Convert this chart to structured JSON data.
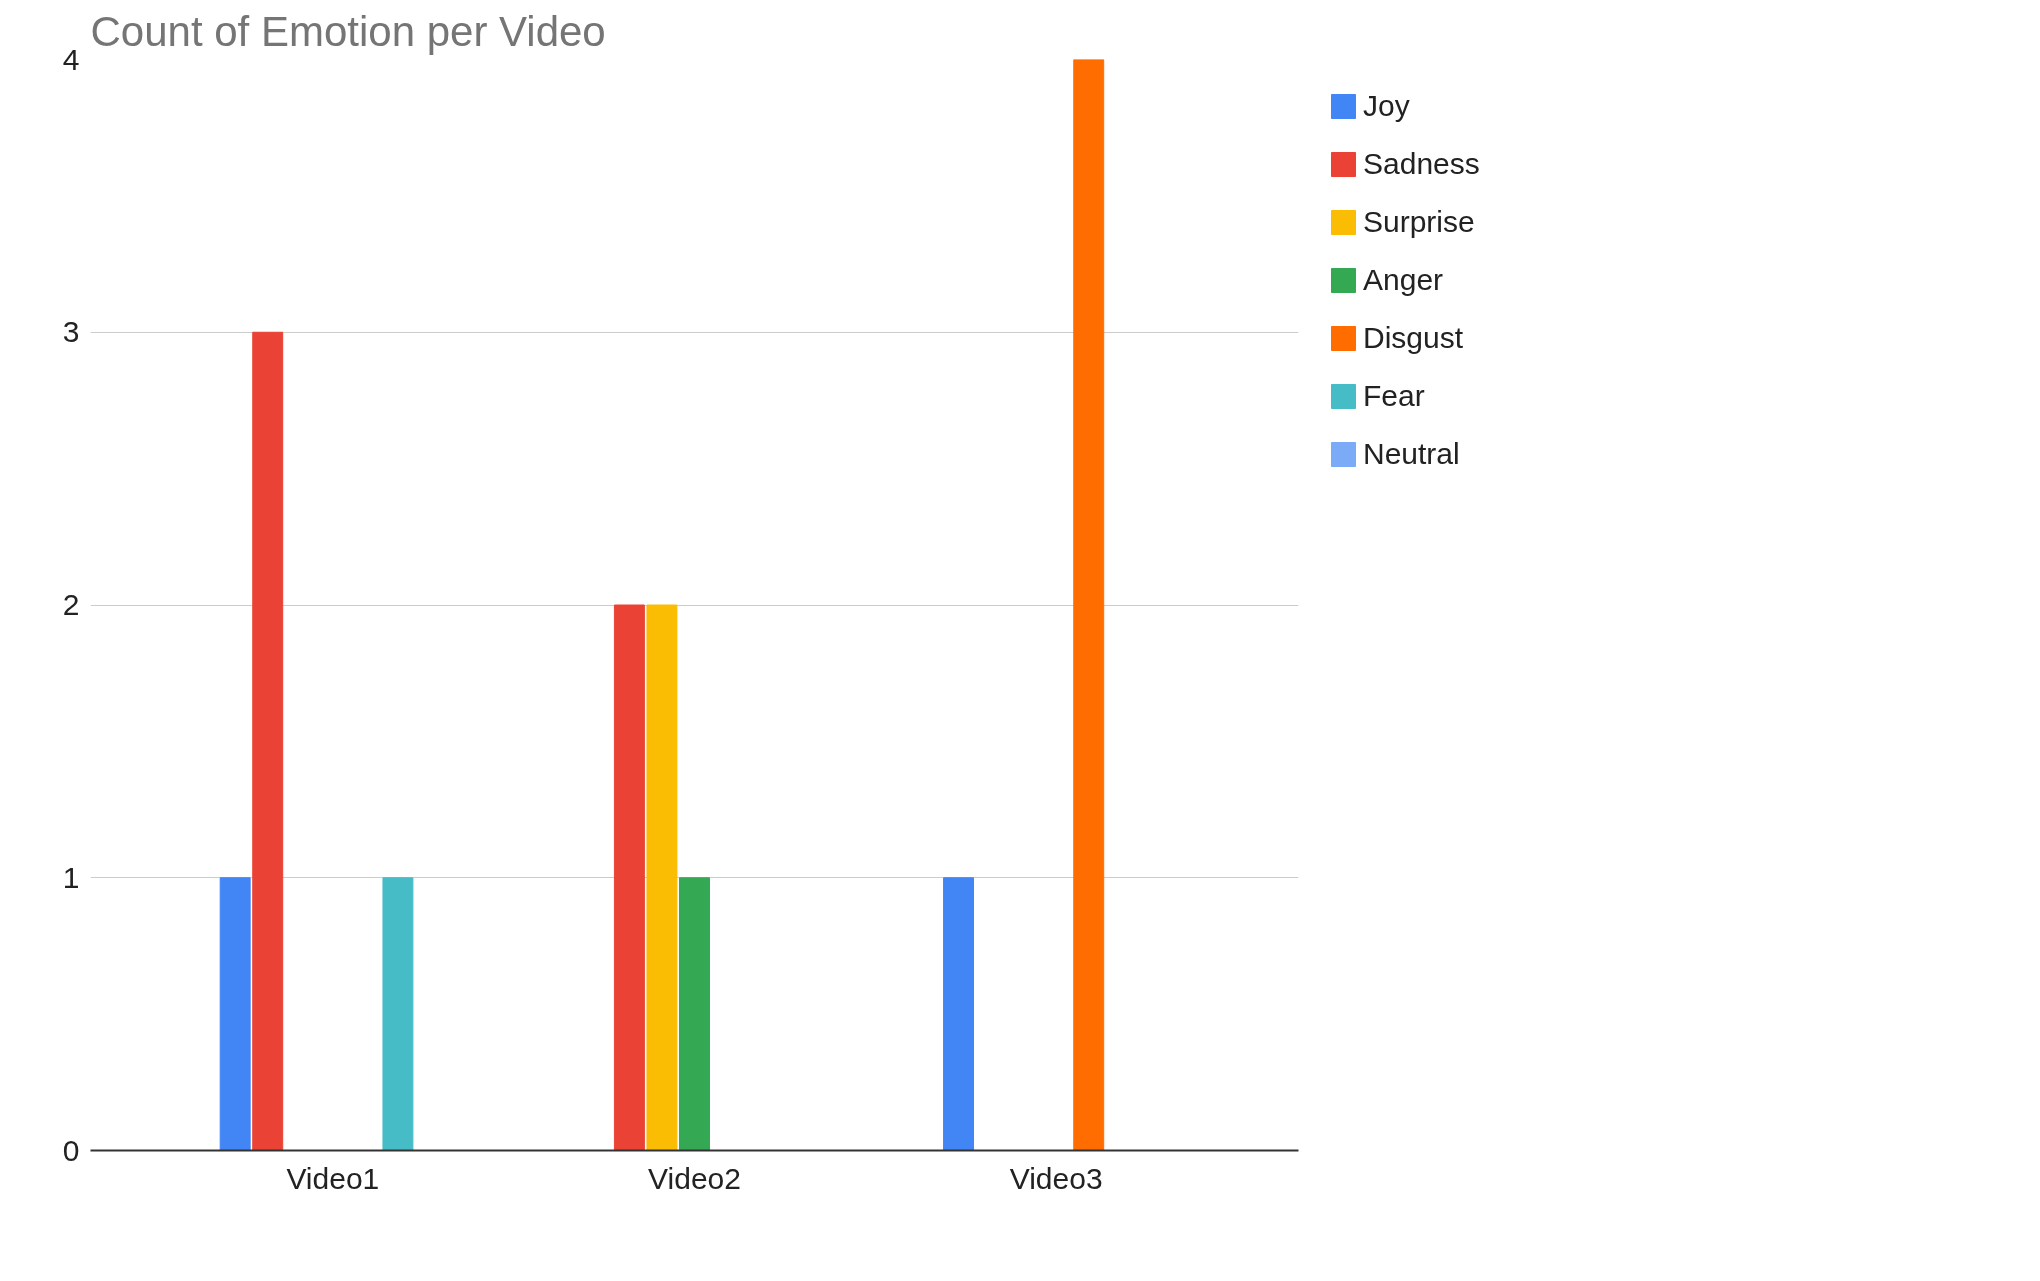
{
  "chart_data": {
    "type": "bar",
    "title": "Count of Emotion per Video",
    "categories": [
      "Video1",
      "Video2",
      "Video3"
    ],
    "series": [
      {
        "name": "Joy",
        "color": "#4285f4",
        "values": [
          1,
          null,
          1
        ]
      },
      {
        "name": "Sadness",
        "color": "#ea4335",
        "values": [
          3,
          2,
          null
        ]
      },
      {
        "name": "Surprise",
        "color": "#fbbc04",
        "values": [
          null,
          2,
          null
        ]
      },
      {
        "name": "Anger",
        "color": "#34a853",
        "values": [
          null,
          1,
          null
        ]
      },
      {
        "name": "Disgust",
        "color": "#ff6d01",
        "values": [
          null,
          null,
          4
        ]
      },
      {
        "name": "Fear",
        "color": "#46bdc6",
        "values": [
          1,
          null,
          null
        ]
      },
      {
        "name": "Neutral",
        "color": "#7baaf7",
        "values": [
          null,
          null,
          null
        ]
      }
    ],
    "ylim": [
      0,
      4
    ],
    "yticks": [
      0,
      1,
      2,
      3,
      4
    ],
    "grid": "y",
    "legend": "top right"
  }
}
